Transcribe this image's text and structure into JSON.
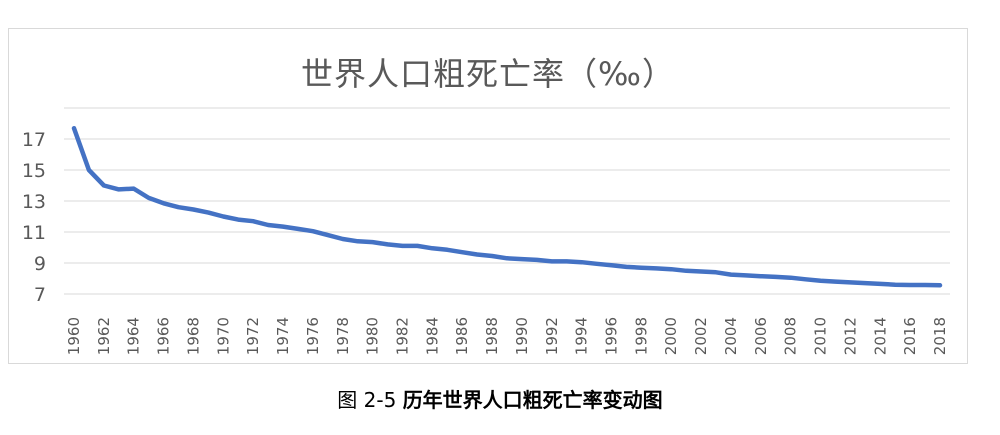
{
  "caption": {
    "prefix": "图 2-5 ",
    "text": "历年世界人口粗死亡率变动图"
  },
  "colors": {
    "line": "#4472c4",
    "grid": "#d9d9d9",
    "tick_text": "#595959",
    "title_text": "#595959"
  },
  "chart_data": {
    "type": "line",
    "title": "世界人口粗死亡率（‰）",
    "xlabel": "",
    "ylabel": "",
    "ylim": [
      7,
      19
    ],
    "yticks": [
      7,
      9,
      11,
      13,
      15,
      17
    ],
    "grid": true,
    "legend": "none",
    "x": [
      1960,
      1961,
      1962,
      1963,
      1964,
      1965,
      1966,
      1967,
      1968,
      1969,
      1970,
      1971,
      1972,
      1973,
      1974,
      1975,
      1976,
      1977,
      1978,
      1979,
      1980,
      1981,
      1982,
      1983,
      1984,
      1985,
      1986,
      1987,
      1988,
      1989,
      1990,
      1991,
      1992,
      1993,
      1994,
      1995,
      1996,
      1997,
      1998,
      1999,
      2000,
      2001,
      2002,
      2003,
      2004,
      2005,
      2006,
      2007,
      2008,
      2009,
      2010,
      2011,
      2012,
      2013,
      2014,
      2015,
      2016,
      2017,
      2018
    ],
    "x_tick_labels": [
      "1960",
      "1962",
      "1964",
      "1966",
      "1968",
      "1970",
      "1972",
      "1974",
      "1976",
      "1978",
      "1980",
      "1982",
      "1984",
      "1986",
      "1988",
      "1990",
      "1992",
      "1994",
      "1996",
      "1998",
      "2000",
      "2002",
      "2004",
      "2006",
      "2008",
      "2010",
      "2012",
      "2014",
      "2016",
      "2018"
    ],
    "series": [
      {
        "values": [
          17.7,
          15.0,
          14.0,
          13.75,
          13.8,
          13.2,
          12.85,
          12.6,
          12.45,
          12.25,
          12.0,
          11.8,
          11.7,
          11.45,
          11.35,
          11.2,
          11.05,
          10.8,
          10.55,
          10.4,
          10.35,
          10.2,
          10.1,
          10.1,
          9.95,
          9.85,
          9.7,
          9.55,
          9.45,
          9.3,
          9.25,
          9.2,
          9.1,
          9.1,
          9.05,
          8.95,
          8.85,
          8.75,
          8.7,
          8.65,
          8.6,
          8.5,
          8.45,
          8.4,
          8.25,
          8.2,
          8.15,
          8.1,
          8.05,
          7.95,
          7.85,
          7.8,
          7.75,
          7.7,
          7.65,
          7.6,
          7.58,
          7.58,
          7.56
        ]
      }
    ]
  }
}
